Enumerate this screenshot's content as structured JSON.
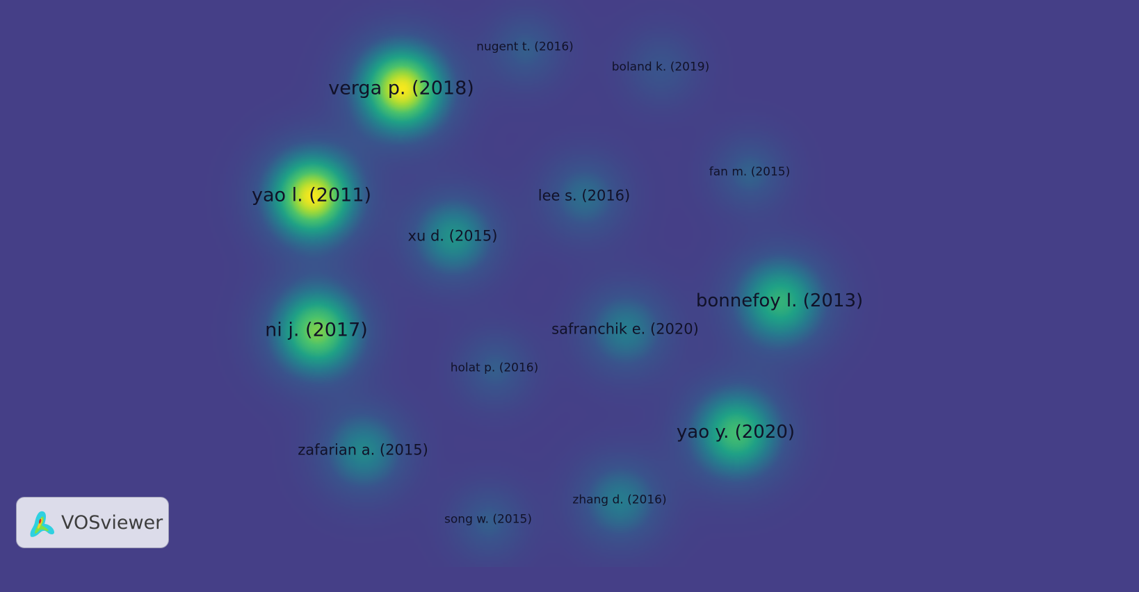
{
  "app": {
    "brand_label": "VOSviewer",
    "visualization": "density",
    "colors": {
      "background": "#453f87",
      "label": "#111128",
      "density_high": "#f7e91e",
      "density_mid": "#1fa187"
    }
  },
  "nodes": [
    {
      "label": "nugent t. (2016)",
      "density": 0.3
    },
    {
      "label": "boland k. (2019)",
      "density": 0.25
    },
    {
      "label": "verga p. (2018)",
      "density": 1.0
    },
    {
      "label": "yao l. (2011)",
      "density": 1.0
    },
    {
      "label": "fan m. (2015)",
      "density": 0.32
    },
    {
      "label": "lee s. (2016)",
      "density": 0.38
    },
    {
      "label": "xu d. (2015)",
      "density": 0.55
    },
    {
      "label": "bonnefoy l. (2013)",
      "density": 0.7
    },
    {
      "label": "safranchik e. (2020)",
      "density": 0.45
    },
    {
      "label": "ni j. (2017)",
      "density": 0.85
    },
    {
      "label": "holat p. (2016)",
      "density": 0.3
    },
    {
      "label": "yao y. (2020)",
      "density": 0.75
    },
    {
      "label": "zafarian a. (2015)",
      "density": 0.5
    },
    {
      "label": "zhang d. (2016)",
      "density": 0.45
    },
    {
      "label": "song w. (2015)",
      "density": 0.3
    }
  ]
}
